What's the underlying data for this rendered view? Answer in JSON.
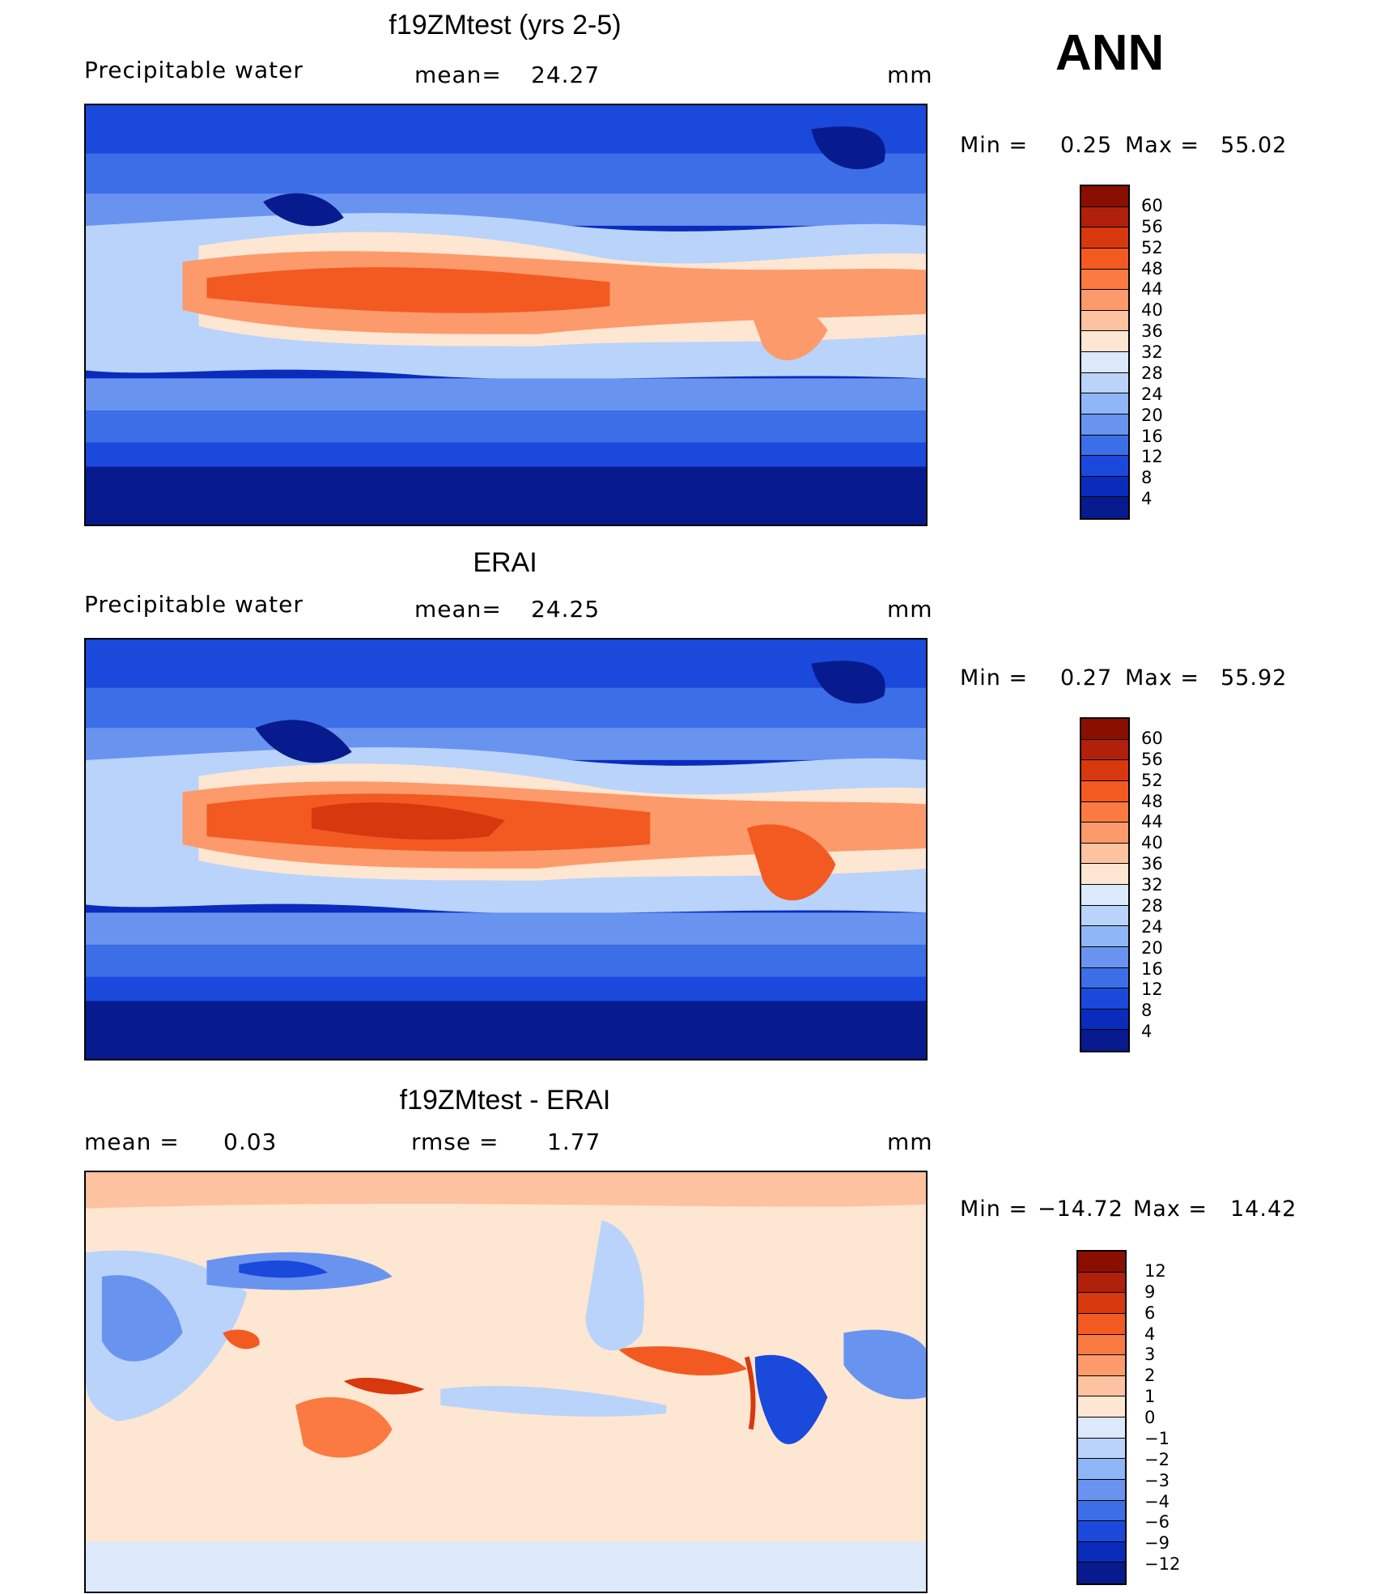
{
  "season": "ANN",
  "units": "mm",
  "panels": [
    {
      "id": "model",
      "title": "f19ZMtest (yrs 2-5)",
      "variable": "Precipitable water",
      "stat1_label": "mean=",
      "stat1_value": "24.27",
      "minmax": {
        "min_label": "Min =",
        "min": "0.25",
        "max_label": "Max =",
        "max": "55.02"
      },
      "colorbar": {
        "labels": [
          "60",
          "56",
          "52",
          "48",
          "44",
          "40",
          "36",
          "32",
          "28",
          "24",
          "20",
          "16",
          "12",
          "8",
          "4"
        ],
        "colors": [
          "#8b0f00",
          "#b0200a",
          "#d8380e",
          "#f25a22",
          "#fb7a41",
          "#fd9a6c",
          "#fdc2a0",
          "#fde6d2",
          "#dbe9fb",
          "#b9d3fb",
          "#8fb6f7",
          "#6894f0",
          "#3c6ee8",
          "#1a49db",
          "#0a2cbd",
          "#071b8e"
        ]
      }
    },
    {
      "id": "obs",
      "title": "ERAI",
      "variable": "Precipitable water",
      "stat1_label": "mean=",
      "stat1_value": "24.25",
      "minmax": {
        "min_label": "Min =",
        "min": "0.27",
        "max_label": "Max =",
        "max": "55.92"
      },
      "colorbar": {
        "labels": [
          "60",
          "56",
          "52",
          "48",
          "44",
          "40",
          "36",
          "32",
          "28",
          "24",
          "20",
          "16",
          "12",
          "8",
          "4"
        ],
        "colors": [
          "#8b0f00",
          "#b0200a",
          "#d8380e",
          "#f25a22",
          "#fb7a41",
          "#fd9a6c",
          "#fdc2a0",
          "#fde6d2",
          "#dbe9fb",
          "#b9d3fb",
          "#8fb6f7",
          "#6894f0",
          "#3c6ee8",
          "#1a49db",
          "#0a2cbd",
          "#071b8e"
        ]
      }
    },
    {
      "id": "diff",
      "title": "f19ZMtest - ERAI",
      "variable": "",
      "stat1_label": "mean =",
      "stat1_value": "0.03",
      "stat2_label": "rmse =",
      "stat2_value": "1.77",
      "minmax": {
        "min_label": "Min =",
        "min": "−14.72",
        "max_label": "Max =",
        "max": "14.42"
      },
      "colorbar": {
        "labels": [
          "12",
          "9",
          "6",
          "4",
          "3",
          "2",
          "1",
          "0",
          "−1",
          "−2",
          "−3",
          "−4",
          "−6",
          "−9",
          "−12"
        ],
        "colors": [
          "#8b0f00",
          "#b0200a",
          "#d8380e",
          "#f25a22",
          "#fb7a41",
          "#fd9a6c",
          "#fdc2a0",
          "#fde6d2",
          "#dbe9fb",
          "#b9d3fb",
          "#8fb6f7",
          "#6894f0",
          "#3c6ee8",
          "#1a49db",
          "#0a2cbd",
          "#071b8e"
        ]
      }
    }
  ]
}
